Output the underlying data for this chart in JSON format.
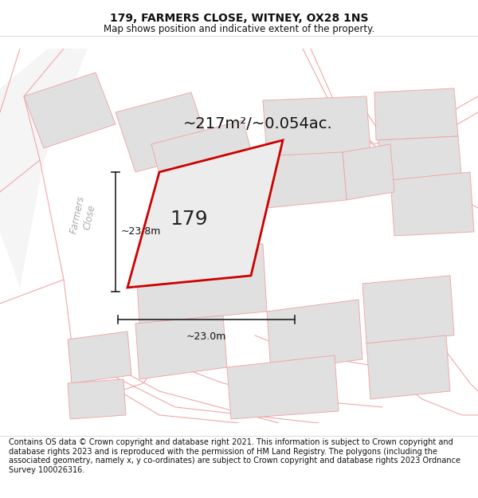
{
  "title_line1": "179, FARMERS CLOSE, WITNEY, OX28 1NS",
  "title_line2": "Map shows position and indicative extent of the property.",
  "area_label": "~217m²/~0.054ac.",
  "plot_number": "179",
  "dim_width": "~23.0m",
  "dim_height": "~23.8m",
  "footer_text": "Contains OS data © Crown copyright and database right 2021. This information is subject to Crown copyright and database rights 2023 and is reproduced with the permission of HM Land Registry. The polygons (including the associated geometry, namely x, y co-ordinates) are subject to Crown copyright and database rights 2023 Ordnance Survey 100026316.",
  "bg_color": "#ffffff",
  "map_bg": "#ffffff",
  "plot_fill": "#e8e8e8",
  "plot_edge": "#cc0000",
  "neighbor_fill": "#e0e0e0",
  "neighbor_edge": "#f0a0a0",
  "road_line_color": "#f0a8a8",
  "street_label_color": "#aaaaaa",
  "title_fontsize": 10,
  "subtitle_fontsize": 8.5,
  "footer_fontsize": 7,
  "dim_line_color": "#222222",
  "area_fontsize": 14,
  "plot_num_fontsize": 18
}
